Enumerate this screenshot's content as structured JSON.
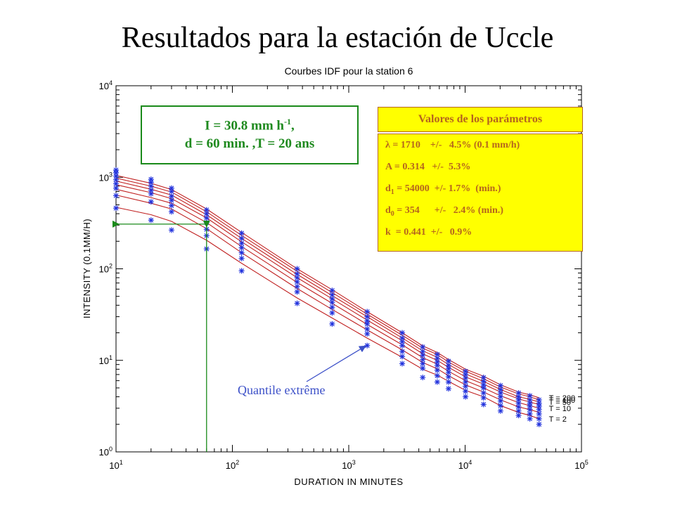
{
  "slide_title": "Resultados para la estación de Uccle",
  "green_box": {
    "line1_pre": "I = 30.8 mm h",
    "line1_sup": "-1",
    "line1_post": ",",
    "line2": "d = 60 min. ,T = 20 ans"
  },
  "params": {
    "header": "Valores de los parámetros",
    "rows": [
      {
        "sym": "λ",
        "sub": "",
        "text": " = 1710    +/-   4.5% (0.1 mm/h)"
      },
      {
        "sym": "A",
        "sub": "",
        "text": " = 0.314   +/-  5.3%"
      },
      {
        "sym": "d",
        "sub": "1",
        "text": " = 54000  +/- 1.7%  (min.)"
      },
      {
        "sym": "d",
        "sub": "0",
        "text": " = 354      +/-   2.4% (min.)"
      },
      {
        "sym": "k",
        "sub": "",
        "text": "  = 0.441  +/-   0.9%"
      }
    ]
  },
  "annotation": "Quantile extrême",
  "colors": {
    "curve": "#c02020",
    "marker": "#2233dd",
    "green": "#1a8a1a",
    "yellow": "#ffff00",
    "brown": "#b5651d",
    "annotation": "#3c50c8"
  },
  "chart_data": {
    "type": "line",
    "title": "Courbes IDF pour la station 6",
    "xlabel": "DURATION IN MINUTES",
    "ylabel": "INTENSITY (0.1MM/H)",
    "x_scale": "log",
    "y_scale": "log",
    "xlim": [
      10,
      100000
    ],
    "ylim": [
      1,
      10000
    ],
    "x_tick_labels": [
      {
        "base": "10",
        "exp": "1"
      },
      {
        "base": "10",
        "exp": "2"
      },
      {
        "base": "10",
        "exp": "3"
      },
      {
        "base": "10",
        "exp": "4"
      },
      {
        "base": "10",
        "exp": "5"
      }
    ],
    "y_tick_labels": [
      {
        "base": "10",
        "exp": "0"
      },
      {
        "base": "10",
        "exp": "1"
      },
      {
        "base": "10",
        "exp": "2"
      },
      {
        "base": "10",
        "exp": "3"
      },
      {
        "base": "10",
        "exp": "4"
      }
    ],
    "durations": [
      10,
      20,
      30,
      60,
      120,
      360,
      720,
      1440,
      2880,
      4320,
      5760,
      7200,
      10080,
      14400,
      20160,
      28800,
      36000,
      43200
    ],
    "series": [
      {
        "legend": "T = 200",
        "values": [
          1050,
          860,
          735,
          450,
          250,
          100,
          59,
          34,
          20,
          14.4,
          12.2,
          10.2,
          8.0,
          6.7,
          5.4,
          4.5,
          4.2,
          3.9
        ]
      },
      {
        "legend": "T = 100",
        "values": [
          980,
          800,
          690,
          420,
          232,
          94,
          55,
          32,
          18.8,
          13.6,
          11.6,
          9.6,
          7.6,
          6.3,
          5.1,
          4.3,
          4.0,
          3.7
        ]
      },
      {
        "legend": "T = 50",
        "values": [
          910,
          740,
          640,
          390,
          215,
          87,
          51,
          30,
          17.6,
          12.7,
          10.8,
          9.0,
          7.1,
          5.9,
          4.8,
          4.0,
          3.75,
          3.5
        ]
      },
      {
        "legend": "",
        "values": [
          830,
          680,
          585,
          360,
          197,
          80,
          47,
          27.5,
          16.4,
          11.8,
          10.0,
          8.4,
          6.6,
          5.5,
          4.5,
          3.8,
          3.5,
          3.3
        ]
      },
      {
        "legend": "T = 10",
        "values": [
          740,
          600,
          520,
          320,
          175,
          71,
          42,
          24.7,
          14.8,
          10.7,
          9.1,
          7.6,
          6.0,
          5.0,
          4.1,
          3.45,
          3.2,
          3.0
        ]
      },
      {
        "legend": "",
        "values": [
          640,
          520,
          450,
          275,
          150,
          61,
          36,
          21.5,
          13.0,
          9.5,
          8.1,
          6.8,
          5.4,
          4.5,
          3.7,
          3.1,
          2.9,
          2.7
        ]
      },
      {
        "legend": "T = 2",
        "values": [
          470,
          390,
          330,
          205,
          115,
          48,
          29,
          17.5,
          10.8,
          8.0,
          6.9,
          5.9,
          4.7,
          4.0,
          3.2,
          2.7,
          2.5,
          2.3
        ]
      }
    ],
    "observed_points": [
      {
        "d": 10,
        "values": [
          1200,
          1120,
          1030,
          940,
          850,
          760,
          630,
          460
        ]
      },
      {
        "d": 20,
        "values": [
          950,
          880,
          800,
          720,
          660,
          540,
          340
        ]
      },
      {
        "d": 30,
        "values": [
          760,
          700,
          620,
          560,
          490,
          420,
          265
        ]
      },
      {
        "d": 60,
        "values": [
          440,
          400,
          360,
          320,
          270,
          230,
          165
        ]
      },
      {
        "d": 120,
        "values": [
          245,
          215,
          190,
          170,
          150,
          130,
          95
        ]
      },
      {
        "d": 360,
        "values": [
          100,
          88,
          80,
          72,
          64,
          56,
          42
        ]
      },
      {
        "d": 720,
        "values": [
          58,
          52,
          47,
          43,
          38,
          33,
          25
        ]
      },
      {
        "d": 1440,
        "values": [
          34,
          30,
          27,
          25,
          22,
          19.5,
          14.5
        ]
      },
      {
        "d": 2880,
        "values": [
          20,
          17.5,
          16,
          14.5,
          12.5,
          11,
          9.2
        ]
      },
      {
        "d": 4320,
        "values": [
          14,
          12.5,
          11.4,
          10.2,
          9.2,
          8.2,
          6.5
        ]
      },
      {
        "d": 5760,
        "values": [
          11.6,
          10.5,
          9.6,
          8.8,
          7.8,
          6.8,
          5.8
        ]
      },
      {
        "d": 7200,
        "values": [
          9.8,
          8.8,
          8.1,
          7.4,
          6.6,
          5.8,
          4.9
        ]
      },
      {
        "d": 10080,
        "values": [
          7.6,
          7.0,
          6.4,
          5.8,
          5.2,
          4.6,
          4.0
        ]
      },
      {
        "d": 14400,
        "values": [
          6.5,
          5.9,
          5.4,
          5.0,
          4.4,
          3.9,
          3.3
        ]
      },
      {
        "d": 20160,
        "values": [
          5.3,
          4.8,
          4.4,
          4.0,
          3.6,
          3.2,
          2.8
        ]
      },
      {
        "d": 28800,
        "values": [
          4.4,
          4.0,
          3.7,
          3.4,
          3.1,
          2.8,
          2.5
        ]
      },
      {
        "d": 36000,
        "values": [
          4.1,
          3.7,
          3.4,
          3.15,
          2.9,
          2.6,
          2.3
        ]
      },
      {
        "d": 43200,
        "values": [
          3.7,
          3.4,
          3.15,
          2.9,
          2.6,
          2.3,
          2.0
        ]
      }
    ],
    "guide_point": {
      "d": 60,
      "i": 308
    },
    "annotation_target": {
      "d": 1440,
      "i": 15
    }
  }
}
